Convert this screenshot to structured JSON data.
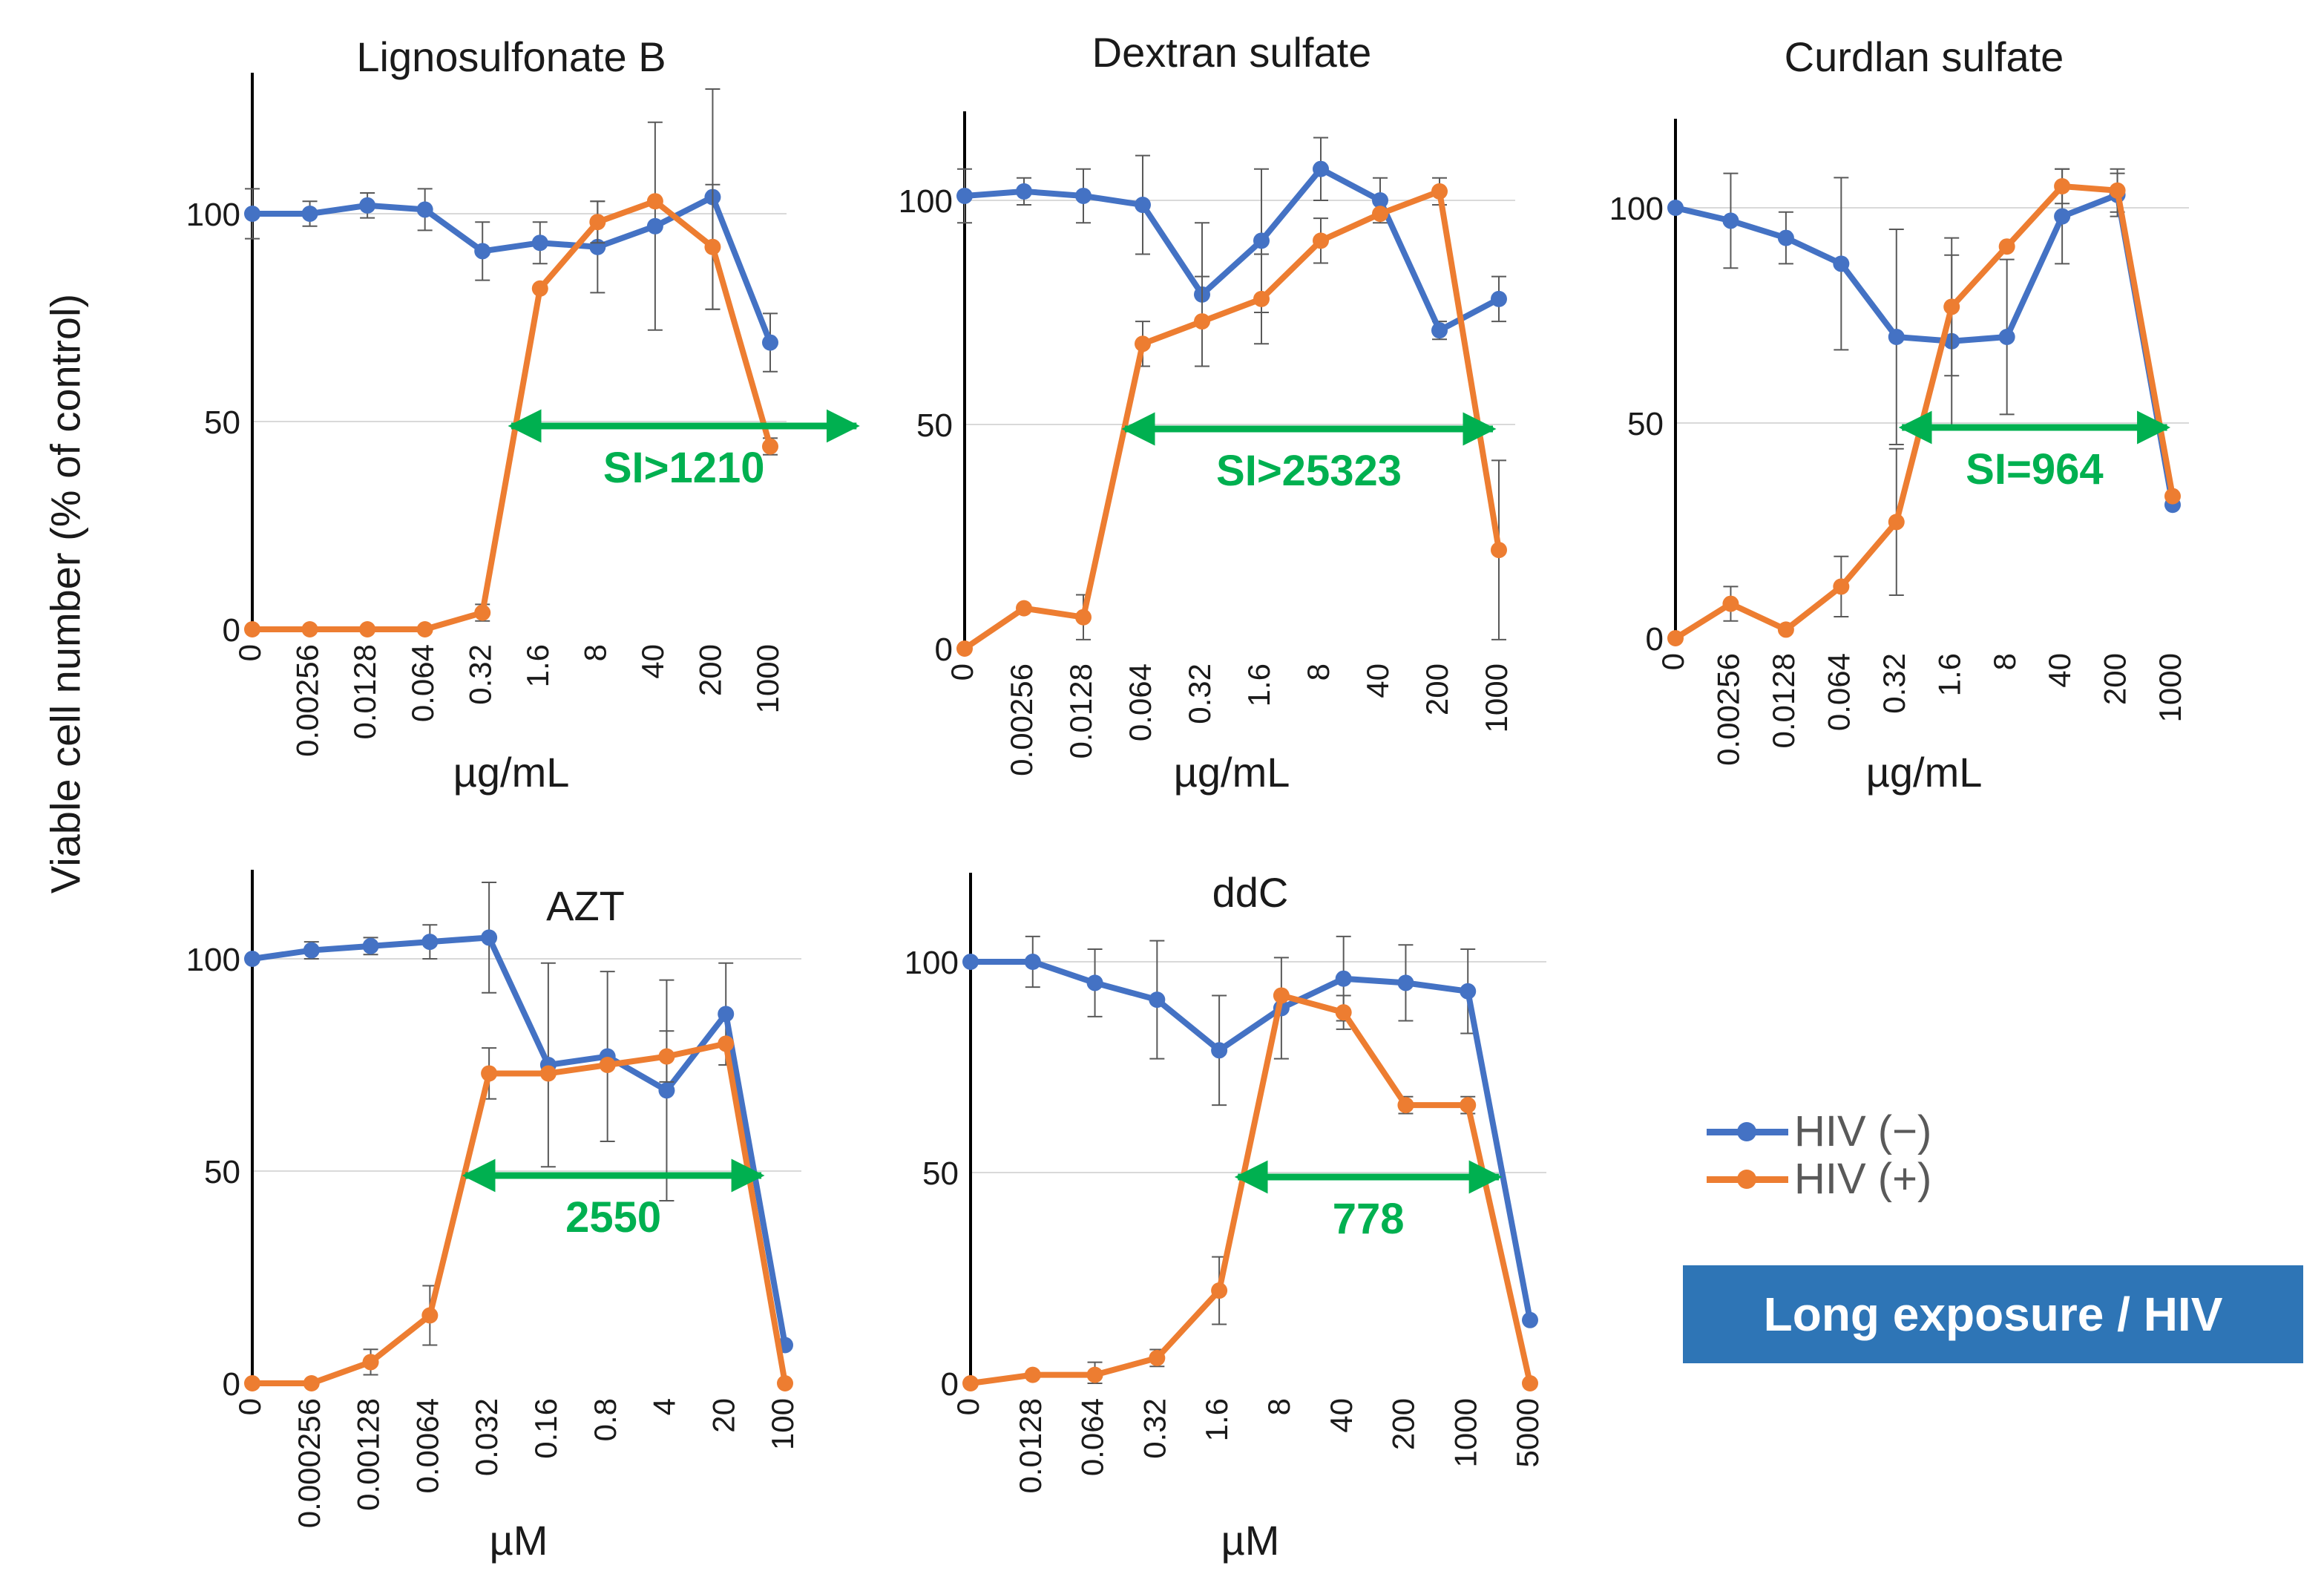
{
  "y_axis_title": "Viable cell number  (% of control)",
  "legend": {
    "items": [
      {
        "label": "HIV (−)",
        "color": "#4472c4"
      },
      {
        "label": "HIV (+)",
        "color": "#ed7d31"
      }
    ]
  },
  "badge": {
    "text": "Long exposure / HIV",
    "color": "#2e75b6"
  },
  "annotation_color": "#00b050",
  "chart_data": [
    {
      "type": "line",
      "title": "Lignosulfonate  B",
      "xlabel": "µg/mL",
      "categories": [
        "0",
        "0.00256",
        "0.0128",
        "0.064",
        "0.32",
        "1.6",
        "8",
        "40",
        "200",
        "1000"
      ],
      "ylim": [
        0,
        100
      ],
      "yticks": [
        0,
        50,
        100
      ],
      "grid": true,
      "series": [
        {
          "name": "HIV (−)",
          "color": "#4472c4",
          "values": [
            100,
            100,
            102,
            101,
            91,
            93,
            92,
            97,
            104,
            69
          ],
          "error": [
            6,
            3,
            3,
            5,
            7,
            5,
            11,
            25,
            27,
            7
          ]
        },
        {
          "name": "HIV (+)",
          "color": "#ed7d31",
          "values": [
            0,
            0,
            0,
            0,
            4,
            82,
            98,
            103,
            92,
            44
          ],
          "error": [
            0,
            0,
            0,
            0,
            2,
            0,
            5,
            0,
            15,
            2
          ]
        }
      ],
      "annotation": {
        "text": "SI>1210",
        "from": 4.5,
        "to": 10.5
      }
    },
    {
      "type": "line",
      "title": "Dextran sulfate",
      "xlabel": "µg/mL",
      "categories": [
        "0",
        "0.00256",
        "0.0128",
        "0.064",
        "0.32",
        "1.6",
        "8",
        "40",
        "200",
        "1000"
      ],
      "ylim": [
        0,
        100
      ],
      "yticks": [
        0,
        50,
        100
      ],
      "grid": true,
      "series": [
        {
          "name": "HIV (−)",
          "color": "#4472c4",
          "values": [
            101,
            102,
            101,
            99,
            79,
            91,
            107,
            100,
            71,
            78
          ],
          "error": [
            6,
            3,
            6,
            11,
            16,
            16,
            7,
            5,
            2,
            5
          ]
        },
        {
          "name": "HIV (+)",
          "color": "#ed7d31",
          "values": [
            0,
            9,
            7,
            68,
            73,
            78,
            91,
            97,
            102,
            22
          ],
          "error": [
            0,
            0,
            5,
            5,
            10,
            10,
            5,
            0,
            3,
            20
          ]
        }
      ],
      "annotation": {
        "text": "SI>25323",
        "from": 2.7,
        "to": 8.9
      }
    },
    {
      "type": "line",
      "title": "Curdlan sulfate",
      "xlabel": "µg/mL",
      "categories": [
        "0",
        "0.00256",
        "0.0128",
        "0.064",
        "0.32",
        "1.6",
        "8",
        "40",
        "200",
        "1000"
      ],
      "ylim": [
        0,
        100
      ],
      "yticks": [
        0,
        50,
        100
      ],
      "grid": true,
      "series": [
        {
          "name": "HIV (−)",
          "color": "#4472c4",
          "values": [
            100,
            97,
            93,
            87,
            70,
            69,
            70,
            98,
            103,
            31
          ],
          "error": [
            0,
            11,
            6,
            20,
            25,
            20,
            18,
            11,
            5,
            0
          ]
        },
        {
          "name": "HIV (+)",
          "color": "#ed7d31",
          "values": [
            0,
            8,
            2,
            12,
            27,
            77,
            91,
            105,
            104,
            33
          ],
          "error": [
            0,
            4,
            0,
            7,
            17,
            16,
            0,
            4,
            5,
            0
          ]
        }
      ],
      "annotation": {
        "text": "SI=964",
        "from": 4.1,
        "to": 8.9
      }
    },
    {
      "type": "line",
      "title": "AZT",
      "xlabel": "µM",
      "categories": [
        "0",
        "0.000256",
        "0.00128",
        "0.0064",
        "0.032",
        "0.16",
        "0.8",
        "4",
        "20",
        "100"
      ],
      "ylim": [
        0,
        100
      ],
      "yticks": [
        0,
        50,
        100
      ],
      "grid": true,
      "series": [
        {
          "name": "HIV (−)",
          "color": "#4472c4",
          "values": [
            100,
            102,
            103,
            104,
            105,
            75,
            77,
            69,
            87,
            9
          ],
          "error": [
            0,
            2,
            2,
            4,
            13,
            24,
            20,
            26,
            12,
            0
          ]
        },
        {
          "name": "HIV (+)",
          "color": "#ed7d31",
          "values": [
            0,
            0,
            5,
            16,
            73,
            73,
            75,
            77,
            80,
            0
          ],
          "error": [
            0,
            0,
            3,
            7,
            6,
            0,
            0,
            6,
            0,
            0
          ]
        }
      ],
      "annotation": {
        "text": "2550",
        "from": 3.6,
        "to": 8.6
      }
    },
    {
      "type": "line",
      "title": "ddC",
      "xlabel": "µM",
      "categories": [
        "0",
        "0.0128",
        "0.064",
        "0.32",
        "1.6",
        "8",
        "40",
        "200",
        "1000",
        "5000"
      ],
      "ylim": [
        0,
        100
      ],
      "yticks": [
        0,
        50,
        100
      ],
      "grid": true,
      "series": [
        {
          "name": "HIV (−)",
          "color": "#4472c4",
          "values": [
            100,
            100,
            95,
            91,
            79,
            89,
            96,
            95,
            93,
            15
          ],
          "error": [
            0,
            6,
            8,
            14,
            13,
            12,
            10,
            9,
            10,
            0
          ]
        },
        {
          "name": "HIV (+)",
          "color": "#ed7d31",
          "values": [
            0,
            2,
            2,
            6,
            22,
            92,
            88,
            66,
            66,
            0
          ],
          "error": [
            0,
            0,
            3,
            2,
            8,
            0,
            4,
            2,
            2,
            0
          ]
        }
      ],
      "annotation": {
        "text": "778",
        "from": 4.3,
        "to": 8.5
      }
    }
  ]
}
